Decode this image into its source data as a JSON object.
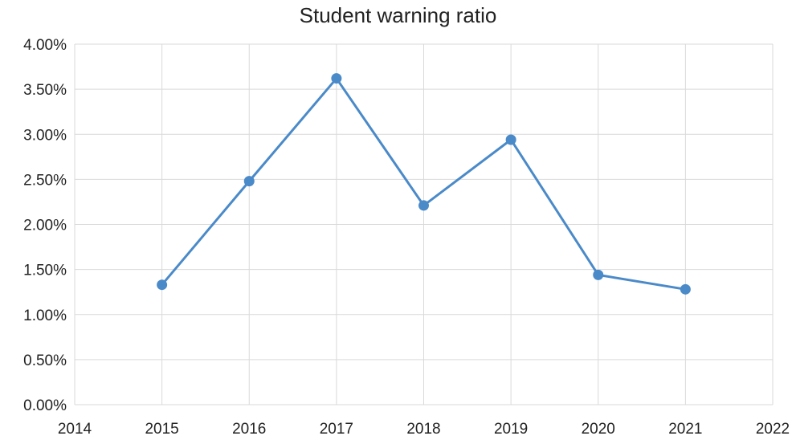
{
  "chart_data": {
    "type": "line",
    "title": "Student warning ratio",
    "xlabel": "",
    "ylabel": "",
    "xlim": [
      2014,
      2022
    ],
    "ylim": [
      0,
      4.0
    ],
    "x_ticks": [
      "2014",
      "2015",
      "2016",
      "2017",
      "2018",
      "2019",
      "2020",
      "2021",
      "2022"
    ],
    "y_ticks": [
      "0.00%",
      "0.50%",
      "1.00%",
      "1.50%",
      "2.00%",
      "2.50%",
      "3.00%",
      "3.50%",
      "4.00%"
    ],
    "grid": true,
    "legend": "none",
    "colors": {
      "line": "#4a8ac9",
      "marker": "#4a8ac9",
      "grid": "#d9d9d9"
    },
    "series": [
      {
        "x": [
          2015,
          2016,
          2017,
          2018,
          2019,
          2020,
          2021
        ],
        "values": [
          1.33,
          2.48,
          3.62,
          2.21,
          2.94,
          1.44,
          1.28
        ]
      }
    ]
  }
}
